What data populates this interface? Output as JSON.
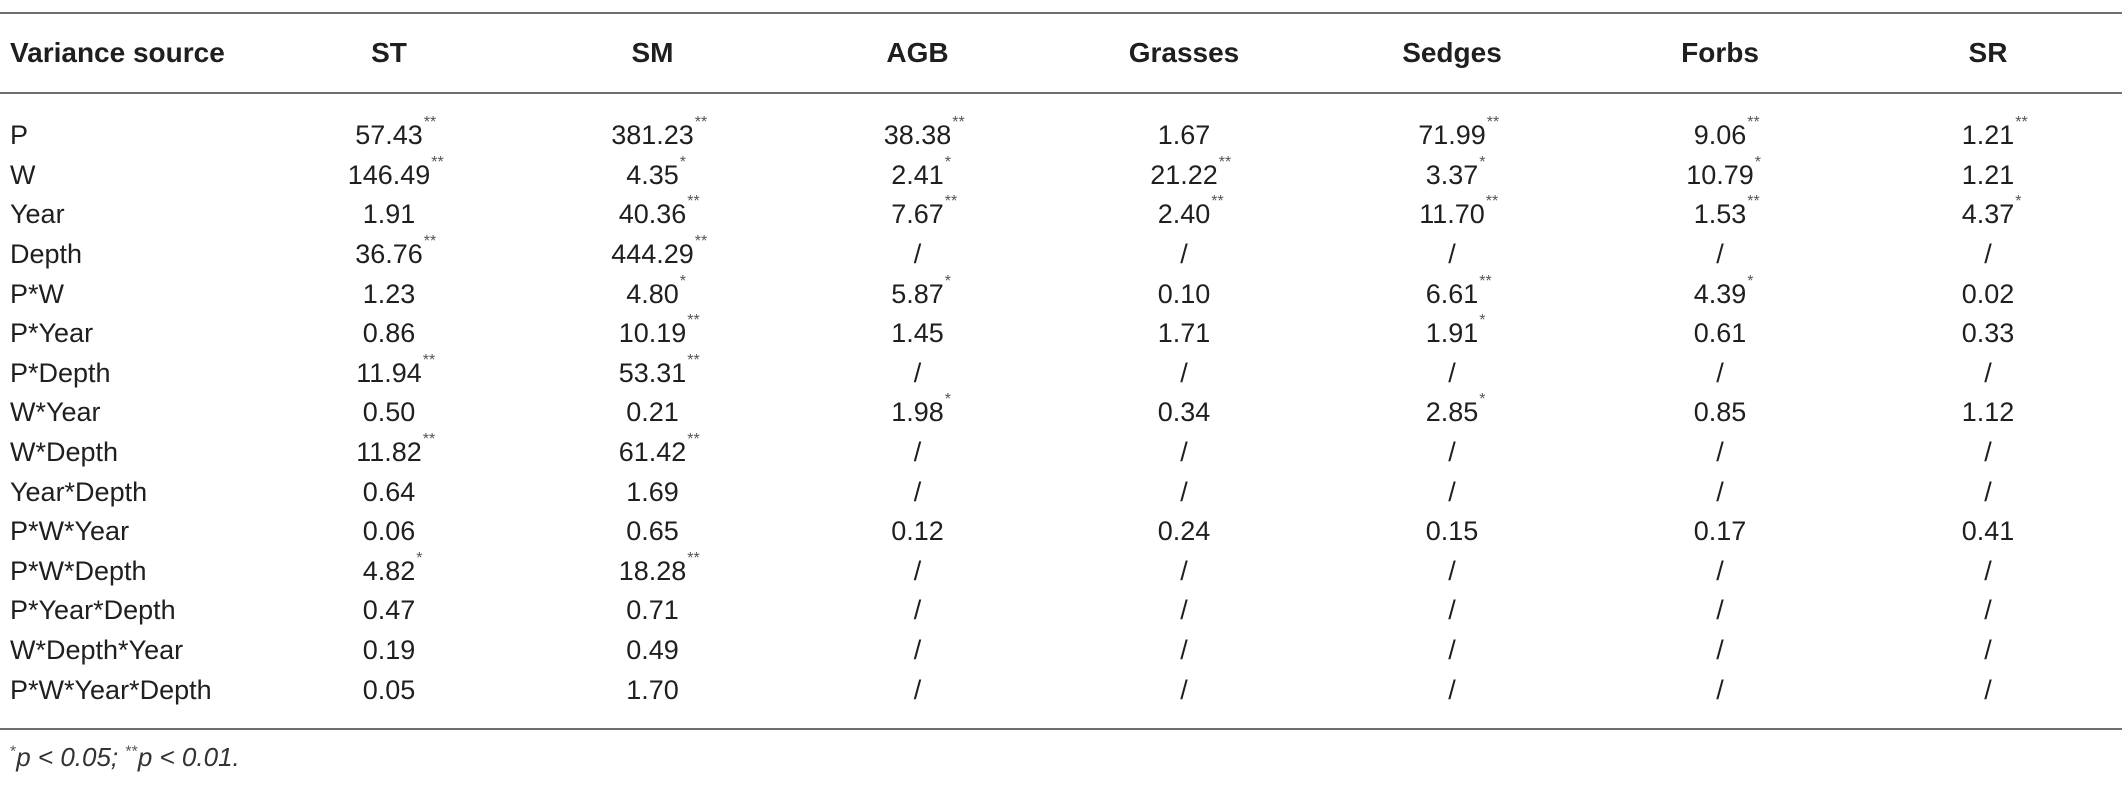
{
  "table": {
    "headers": [
      "Variance source",
      "ST",
      "SM",
      "AGB",
      "Grasses",
      "Sedges",
      "Forbs",
      "SR"
    ],
    "rows": [
      {
        "source": "P",
        "cells": [
          {
            "v": "57.43",
            "s": "**"
          },
          {
            "v": "381.23",
            "s": "**"
          },
          {
            "v": "38.38",
            "s": "**"
          },
          {
            "v": "1.67",
            "s": ""
          },
          {
            "v": "71.99",
            "s": "**"
          },
          {
            "v": "9.06",
            "s": "**"
          },
          {
            "v": "1.21",
            "s": "**"
          }
        ]
      },
      {
        "source": "W",
        "cells": [
          {
            "v": "146.49",
            "s": "**"
          },
          {
            "v": "4.35",
            "s": "*"
          },
          {
            "v": "2.41",
            "s": "*"
          },
          {
            "v": "21.22",
            "s": "**"
          },
          {
            "v": "3.37",
            "s": "*"
          },
          {
            "v": "10.79",
            "s": "*"
          },
          {
            "v": "1.21",
            "s": ""
          }
        ]
      },
      {
        "source": "Year",
        "cells": [
          {
            "v": "1.91",
            "s": ""
          },
          {
            "v": "40.36",
            "s": "**"
          },
          {
            "v": "7.67",
            "s": "**"
          },
          {
            "v": "2.40",
            "s": "**"
          },
          {
            "v": "11.70",
            "s": "**"
          },
          {
            "v": "1.53",
            "s": "**"
          },
          {
            "v": "4.37",
            "s": "*"
          }
        ]
      },
      {
        "source": "Depth",
        "cells": [
          {
            "v": "36.76",
            "s": "**"
          },
          {
            "v": "444.29",
            "s": "**"
          },
          {
            "v": "/",
            "s": ""
          },
          {
            "v": "/",
            "s": ""
          },
          {
            "v": "/",
            "s": ""
          },
          {
            "v": "/",
            "s": ""
          },
          {
            "v": "/",
            "s": ""
          }
        ]
      },
      {
        "source": "P*W",
        "cells": [
          {
            "v": "1.23",
            "s": ""
          },
          {
            "v": "4.80",
            "s": "*"
          },
          {
            "v": "5.87",
            "s": "*"
          },
          {
            "v": "0.10",
            "s": ""
          },
          {
            "v": "6.61",
            "s": "**"
          },
          {
            "v": "4.39",
            "s": "*"
          },
          {
            "v": "0.02",
            "s": ""
          }
        ]
      },
      {
        "source": "P*Year",
        "cells": [
          {
            "v": "0.86",
            "s": ""
          },
          {
            "v": "10.19",
            "s": "**"
          },
          {
            "v": "1.45",
            "s": ""
          },
          {
            "v": "1.71",
            "s": ""
          },
          {
            "v": "1.91",
            "s": "*"
          },
          {
            "v": "0.61",
            "s": ""
          },
          {
            "v": "0.33",
            "s": ""
          }
        ]
      },
      {
        "source": "P*Depth",
        "cells": [
          {
            "v": "11.94",
            "s": "**"
          },
          {
            "v": "53.31",
            "s": "**"
          },
          {
            "v": "/",
            "s": ""
          },
          {
            "v": "/",
            "s": ""
          },
          {
            "v": "/",
            "s": ""
          },
          {
            "v": "/",
            "s": ""
          },
          {
            "v": "/",
            "s": ""
          }
        ]
      },
      {
        "source": "W*Year",
        "cells": [
          {
            "v": "0.50",
            "s": ""
          },
          {
            "v": "0.21",
            "s": ""
          },
          {
            "v": "1.98",
            "s": "*"
          },
          {
            "v": "0.34",
            "s": ""
          },
          {
            "v": "2.85",
            "s": "*"
          },
          {
            "v": "0.85",
            "s": ""
          },
          {
            "v": "1.12",
            "s": ""
          }
        ]
      },
      {
        "source": "W*Depth",
        "cells": [
          {
            "v": "11.82",
            "s": "**"
          },
          {
            "v": "61.42",
            "s": "**"
          },
          {
            "v": "/",
            "s": ""
          },
          {
            "v": "/",
            "s": ""
          },
          {
            "v": "/",
            "s": ""
          },
          {
            "v": "/",
            "s": ""
          },
          {
            "v": "/",
            "s": ""
          }
        ]
      },
      {
        "source": "Year*Depth",
        "cells": [
          {
            "v": "0.64",
            "s": ""
          },
          {
            "v": "1.69",
            "s": ""
          },
          {
            "v": "/",
            "s": ""
          },
          {
            "v": "/",
            "s": ""
          },
          {
            "v": "/",
            "s": ""
          },
          {
            "v": "/",
            "s": ""
          },
          {
            "v": "/",
            "s": ""
          }
        ]
      },
      {
        "source": "P*W*Year",
        "cells": [
          {
            "v": "0.06",
            "s": ""
          },
          {
            "v": "0.65",
            "s": ""
          },
          {
            "v": "0.12",
            "s": ""
          },
          {
            "v": "0.24",
            "s": ""
          },
          {
            "v": "0.15",
            "s": ""
          },
          {
            "v": "0.17",
            "s": ""
          },
          {
            "v": "0.41",
            "s": ""
          }
        ]
      },
      {
        "source": "P*W*Depth",
        "cells": [
          {
            "v": "4.82",
            "s": "*"
          },
          {
            "v": "18.28",
            "s": "**"
          },
          {
            "v": "/",
            "s": ""
          },
          {
            "v": "/",
            "s": ""
          },
          {
            "v": "/",
            "s": ""
          },
          {
            "v": "/",
            "s": ""
          },
          {
            "v": "/",
            "s": ""
          }
        ]
      },
      {
        "source": "P*Year*Depth",
        "cells": [
          {
            "v": "0.47",
            "s": ""
          },
          {
            "v": "0.71",
            "s": ""
          },
          {
            "v": "/",
            "s": ""
          },
          {
            "v": "/",
            "s": ""
          },
          {
            "v": "/",
            "s": ""
          },
          {
            "v": "/",
            "s": ""
          },
          {
            "v": "/",
            "s": ""
          }
        ]
      },
      {
        "source": "W*Depth*Year",
        "cells": [
          {
            "v": "0.19",
            "s": ""
          },
          {
            "v": "0.49",
            "s": ""
          },
          {
            "v": "/",
            "s": ""
          },
          {
            "v": "/",
            "s": ""
          },
          {
            "v": "/",
            "s": ""
          },
          {
            "v": "/",
            "s": ""
          },
          {
            "v": "/",
            "s": ""
          }
        ]
      },
      {
        "source": "P*W*Year*Depth",
        "cells": [
          {
            "v": "0.05",
            "s": ""
          },
          {
            "v": "1.70",
            "s": ""
          },
          {
            "v": "/",
            "s": ""
          },
          {
            "v": "/",
            "s": ""
          },
          {
            "v": "/",
            "s": ""
          },
          {
            "v": "/",
            "s": ""
          },
          {
            "v": "/",
            "s": ""
          }
        ]
      }
    ]
  },
  "footnote": {
    "mark1": "*",
    "text1": "p < 0.05; ",
    "mark2": "**",
    "text2": "p < 0.01."
  }
}
